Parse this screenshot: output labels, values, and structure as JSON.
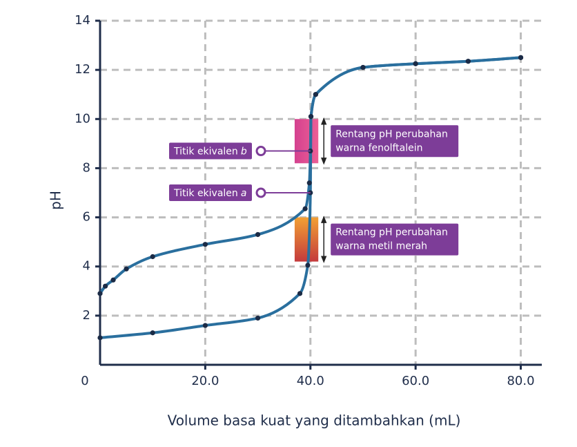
{
  "chart_data": {
    "type": "line",
    "xlabel": "Volume basa kuat yang ditambahkan (mL)",
    "ylabel": "pH",
    "xlim": [
      0,
      84
    ],
    "ylim": [
      0,
      14
    ],
    "xticks": [
      0,
      {
        "value": 20,
        "label": "20.0"
      },
      {
        "value": 40,
        "label": "40.0"
      },
      {
        "value": 60,
        "label": "60.0"
      },
      {
        "value": 80,
        "label": "80.0"
      }
    ],
    "yticks": [
      2,
      4,
      6,
      8,
      10,
      12,
      14
    ],
    "grid": true,
    "series": [
      {
        "color": "#2a6f9e",
        "x": [
          0,
          1,
          2.5,
          5,
          10,
          20,
          30,
          39,
          39.8,
          40,
          40.1,
          41,
          50,
          60,
          70,
          80
        ],
        "values": [
          2.9,
          3.2,
          3.45,
          3.9,
          4.4,
          4.9,
          5.3,
          6.35,
          7.4,
          8.7,
          10.1,
          11,
          12.1,
          12.25,
          12.35,
          12.5
        ]
      },
      {
        "color": "#2a6f9e",
        "x": [
          0,
          10,
          20,
          30,
          38,
          39.5,
          40,
          40.1,
          41,
          50,
          60,
          70,
          80
        ],
        "values": [
          1.1,
          1.3,
          1.6,
          1.9,
          2.9,
          4.05,
          7.0,
          10.1,
          11,
          12.1,
          12.25,
          12.35,
          12.5
        ]
      }
    ],
    "ranges": [
      {
        "lines": [
          "Rentang pH perubahan",
          "warna fenolftalein"
        ],
        "xmin": 37,
        "xmax": 41.5,
        "ymin": 8.2,
        "ymax": 10,
        "fill": "url(#gradPink)"
      },
      {
        "lines": [
          "Rentang pH perubahan",
          "warna metil merah"
        ],
        "xmin": 37,
        "xmax": 41.5,
        "ymin": 4.2,
        "ymax": 6.0,
        "fill": "url(#gradOrange)"
      }
    ],
    "annotations": [
      {
        "label": "Titik ekivalen",
        "letter": "b",
        "x": 40,
        "y": 8.7
      },
      {
        "label": "Titik ekivalen",
        "letter": "a",
        "x": 40,
        "y": 7.0
      }
    ]
  }
}
